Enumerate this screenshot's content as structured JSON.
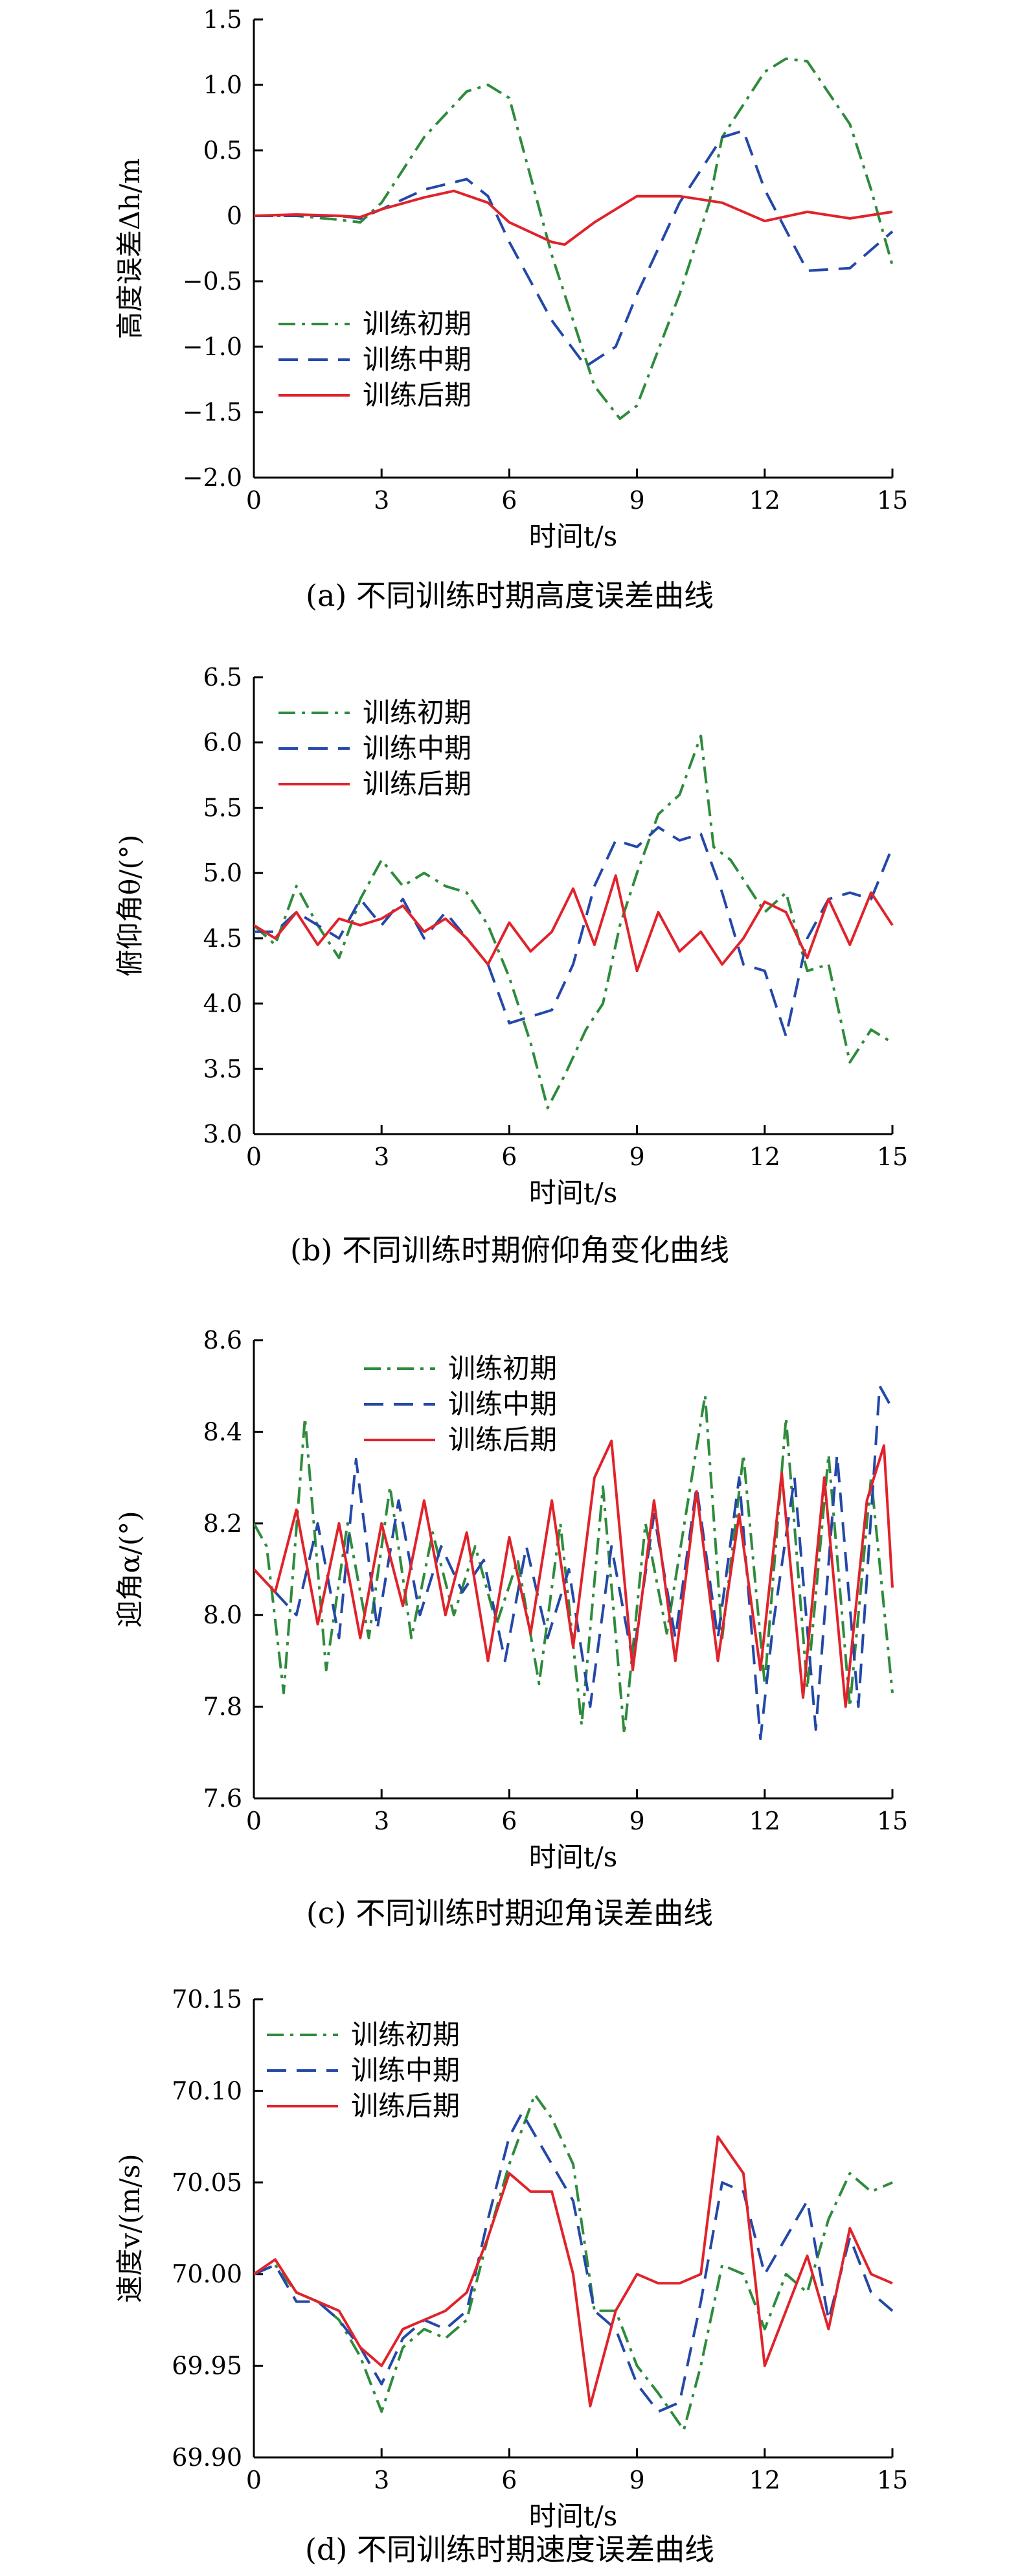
{
  "colors": {
    "early": "#2e8b3c",
    "middle": "#2448a8",
    "late": "#e0232b",
    "axis": "#000000"
  },
  "legend_labels": {
    "early": "训练初期",
    "middle": "训练中期",
    "late": "训练后期"
  },
  "chart_data": [
    {
      "type": "line",
      "caption": "(a) 不同训练时期高度误差曲线",
      "xlabel": "时间t/s",
      "ylabel": "高度误差Δh/m",
      "xlim": [
        0,
        15
      ],
      "ylim": [
        -2.0,
        1.5
      ],
      "xticks": [
        "0",
        "3",
        "6",
        "9",
        "12",
        "15"
      ],
      "yticks": [
        "−2.0",
        "−1.5",
        "−1.0",
        "−0.5",
        "0",
        "0.5",
        "1.0",
        "1.5"
      ],
      "legend": "left",
      "series": [
        {
          "name": "训练初期",
          "style": "dashdot",
          "color": "#2e8b3c",
          "x": [
            0,
            1,
            2,
            2.5,
            3,
            4,
            5,
            5.5,
            6,
            7,
            8,
            8.6,
            9,
            10,
            10.7,
            11,
            12,
            12.5,
            13,
            14,
            14.5,
            15
          ],
          "y": [
            0,
            0,
            -0.03,
            -0.05,
            0.1,
            0.6,
            0.95,
            1.0,
            0.9,
            -0.3,
            -1.3,
            -1.55,
            -1.45,
            -0.6,
            0.1,
            0.6,
            1.1,
            1.2,
            1.18,
            0.7,
            0.2,
            -0.38
          ]
        },
        {
          "name": "训练中期",
          "style": "dashed",
          "color": "#2448a8",
          "x": [
            0,
            1,
            2,
            2.5,
            3,
            4,
            5,
            5.5,
            6,
            7,
            7.8,
            8.5,
            9,
            10,
            11,
            11.5,
            12,
            13,
            14,
            15
          ],
          "y": [
            0,
            0,
            0,
            -0.02,
            0.05,
            0.2,
            0.28,
            0.15,
            -0.2,
            -0.8,
            -1.15,
            -1.0,
            -0.6,
            0.1,
            0.6,
            0.65,
            0.2,
            -0.42,
            -0.4,
            -0.12
          ]
        },
        {
          "name": "训练后期",
          "style": "solid",
          "color": "#e0232b",
          "x": [
            0,
            1,
            2,
            2.5,
            3,
            4,
            4.7,
            5.5,
            6,
            7,
            7.3,
            8,
            9,
            10,
            11,
            12,
            13,
            14,
            15
          ],
          "y": [
            0,
            0.01,
            0.0,
            -0.01,
            0.05,
            0.14,
            0.19,
            0.1,
            -0.05,
            -0.2,
            -0.22,
            -0.05,
            0.15,
            0.15,
            0.1,
            -0.04,
            0.03,
            -0.02,
            0.03
          ]
        }
      ]
    },
    {
      "type": "line",
      "caption": "(b) 不同训练时期俯仰角变化曲线",
      "xlabel": "时间t/s",
      "ylabel": "俯仰角θ/(°)",
      "xlim": [
        0,
        15
      ],
      "ylim": [
        3.0,
        6.5
      ],
      "xticks": [
        "0",
        "3",
        "6",
        "9",
        "12",
        "15"
      ],
      "yticks": [
        "3.0",
        "3.5",
        "4.0",
        "4.5",
        "5.0",
        "5.5",
        "6.0",
        "6.5"
      ],
      "legend": "top-left",
      "series": [
        {
          "name": "训练初期",
          "style": "dashdot",
          "color": "#2e8b3c",
          "x": [
            0,
            0.5,
            1,
            1.5,
            2,
            2.5,
            3,
            3.5,
            4,
            4.5,
            5,
            5.5,
            6,
            6.5,
            6.9,
            7.3,
            7.8,
            8.2,
            8.6,
            9,
            9.5,
            10,
            10.5,
            10.8,
            11.2,
            12,
            12.5,
            13,
            13.5,
            14,
            14.5,
            15
          ],
          "y": [
            4.6,
            4.45,
            4.9,
            4.6,
            4.35,
            4.8,
            5.1,
            4.9,
            5.0,
            4.9,
            4.85,
            4.6,
            4.2,
            3.7,
            3.2,
            3.45,
            3.8,
            4.0,
            4.6,
            5.0,
            5.45,
            5.6,
            6.05,
            5.2,
            5.1,
            4.7,
            4.85,
            4.25,
            4.3,
            3.55,
            3.8,
            3.7
          ]
        },
        {
          "name": "训练中期",
          "style": "dashed",
          "color": "#2448a8",
          "x": [
            0,
            0.5,
            1,
            1.5,
            2,
            2.5,
            3,
            3.5,
            4,
            4.5,
            5,
            5.5,
            6,
            7,
            7.5,
            8,
            8.5,
            9,
            9.5,
            10,
            10.5,
            11,
            11.5,
            12,
            12.5,
            13,
            13.5,
            14,
            14.5,
            15
          ],
          "y": [
            4.55,
            4.55,
            4.7,
            4.6,
            4.5,
            4.8,
            4.6,
            4.8,
            4.5,
            4.7,
            4.5,
            4.3,
            3.85,
            3.95,
            4.3,
            4.9,
            5.25,
            5.2,
            5.35,
            5.25,
            5.3,
            4.85,
            4.3,
            4.25,
            3.75,
            4.5,
            4.8,
            4.85,
            4.8,
            5.2
          ]
        },
        {
          "name": "训练后期",
          "style": "solid",
          "color": "#e0232b",
          "x": [
            0,
            0.5,
            1,
            1.5,
            2,
            2.5,
            3,
            3.5,
            4,
            4.5,
            5,
            5.5,
            6,
            6.5,
            7,
            7.5,
            8,
            8.5,
            9,
            9.5,
            10,
            10.5,
            11,
            11.5,
            12,
            12.5,
            13,
            13.5,
            14,
            14.5,
            15
          ],
          "y": [
            4.6,
            4.5,
            4.7,
            4.45,
            4.65,
            4.6,
            4.65,
            4.75,
            4.55,
            4.65,
            4.5,
            4.3,
            4.62,
            4.4,
            4.55,
            4.88,
            4.45,
            4.98,
            4.25,
            4.7,
            4.4,
            4.55,
            4.3,
            4.5,
            4.78,
            4.7,
            4.35,
            4.8,
            4.45,
            4.85,
            4.6
          ]
        }
      ]
    },
    {
      "type": "line",
      "caption": "(c) 不同训练时期迎角误差曲线",
      "xlabel": "时间t/s",
      "ylabel": "迎角α/(°)",
      "xlim": [
        0,
        15
      ],
      "ylim": [
        7.6,
        8.6
      ],
      "xticks": [
        "0",
        "3",
        "6",
        "9",
        "12",
        "15"
      ],
      "yticks": [
        "7.6",
        "7.8",
        "8.0",
        "8.2",
        "8.4",
        "8.6"
      ],
      "legend": "top-center",
      "series": [
        {
          "name": "训练初期",
          "style": "dashdot",
          "color": "#2e8b3c",
          "x": [
            0,
            0.3,
            0.7,
            1.2,
            1.7,
            2.2,
            2.7,
            3.2,
            3.7,
            4.2,
            4.7,
            5.2,
            5.7,
            6.2,
            6.7,
            7.2,
            7.7,
            8.2,
            8.7,
            9.2,
            9.7,
            10.2,
            10.6,
            11.0,
            11.5,
            12.0,
            12.5,
            13.0,
            13.5,
            14.0,
            14.5,
            15
          ],
          "y": [
            8.2,
            8.15,
            7.83,
            8.43,
            7.88,
            8.2,
            7.95,
            8.28,
            7.95,
            8.18,
            8.0,
            8.15,
            7.98,
            8.12,
            7.85,
            8.2,
            7.76,
            8.28,
            7.74,
            8.2,
            7.96,
            8.25,
            8.48,
            7.95,
            8.35,
            7.85,
            8.43,
            7.84,
            8.35,
            7.8,
            8.3,
            7.83
          ]
        },
        {
          "name": "训练中期",
          "style": "dashed",
          "color": "#2448a8",
          "x": [
            0,
            0.5,
            1,
            1.5,
            2,
            2.4,
            2.9,
            3.4,
            3.9,
            4.4,
            4.9,
            5.4,
            5.9,
            6.4,
            6.9,
            7.4,
            7.9,
            8.4,
            8.9,
            9.4,
            9.9,
            10.4,
            10.9,
            11.4,
            11.9,
            12.2,
            12.7,
            13.2,
            13.7,
            14.2,
            14.7,
            15
          ],
          "y": [
            8.1,
            8.05,
            8.0,
            8.2,
            7.95,
            8.34,
            7.97,
            8.25,
            8.0,
            8.15,
            8.05,
            8.12,
            7.9,
            8.15,
            7.95,
            8.1,
            7.8,
            8.15,
            7.9,
            8.22,
            7.95,
            8.28,
            7.95,
            8.3,
            7.73,
            7.98,
            8.3,
            7.75,
            8.35,
            7.8,
            8.5,
            8.45
          ]
        },
        {
          "name": "训练后期",
          "style": "solid",
          "color": "#e0232b",
          "x": [
            0,
            0.5,
            1,
            1.5,
            2,
            2.5,
            3,
            3.5,
            4,
            4.5,
            5,
            5.5,
            6,
            6.5,
            7,
            7.5,
            8,
            8.4,
            8.9,
            9.4,
            9.9,
            10.4,
            10.9,
            11.4,
            11.9,
            12.4,
            12.9,
            13.4,
            13.9,
            14.4,
            14.8,
            15
          ],
          "y": [
            8.1,
            8.05,
            8.23,
            7.98,
            8.2,
            7.95,
            8.2,
            8.02,
            8.25,
            8.0,
            8.18,
            7.9,
            8.17,
            7.96,
            8.25,
            7.93,
            8.3,
            8.38,
            7.88,
            8.25,
            7.9,
            8.27,
            7.9,
            8.22,
            7.88,
            8.31,
            7.82,
            8.3,
            7.8,
            8.25,
            8.37,
            8.06
          ]
        }
      ]
    },
    {
      "type": "line",
      "caption": "(d) 不同训练时期速度误差曲线",
      "xlabel": "时间t/s",
      "ylabel": "速度v/(m/s)",
      "xlim": [
        0,
        15
      ],
      "ylim": [
        69.9,
        70.15
      ],
      "xticks": [
        "0",
        "3",
        "6",
        "9",
        "12",
        "15"
      ],
      "yticks": [
        "69.90",
        "69.95",
        "70.00",
        "70.05",
        "70.10",
        "70.15"
      ],
      "legend": "top-left",
      "series": [
        {
          "name": "训练初期",
          "style": "dashdot",
          "color": "#2e8b3c",
          "x": [
            0,
            0.5,
            1,
            1.5,
            2,
            2.5,
            3,
            3.5,
            4,
            4.5,
            5,
            5.5,
            6,
            6.6,
            7,
            7.5,
            8,
            8.5,
            9,
            9.5,
            10.1,
            10.5,
            11,
            11.5,
            12,
            12.5,
            13,
            13.5,
            14,
            14.5,
            15
          ],
          "y": [
            70.0,
            70.005,
            69.99,
            69.985,
            69.975,
            69.955,
            69.925,
            69.96,
            69.97,
            69.965,
            69.975,
            70.02,
            70.06,
            70.098,
            70.085,
            70.06,
            69.98,
            69.98,
            69.95,
            69.935,
            69.915,
            69.95,
            70.005,
            70.0,
            69.97,
            70.0,
            69.99,
            70.03,
            70.055,
            70.045,
            70.05
          ]
        },
        {
          "name": "训练中期",
          "style": "dashed",
          "color": "#2448a8",
          "x": [
            0,
            0.5,
            1,
            1.5,
            2,
            2.5,
            3,
            3.5,
            4,
            4.5,
            5,
            5.5,
            6,
            6.3,
            7,
            7.5,
            8,
            8.5,
            9,
            9.5,
            10,
            10.5,
            11,
            11.5,
            12,
            12.5,
            13,
            13.5,
            14,
            14.5,
            15
          ],
          "y": [
            70.0,
            70.005,
            69.985,
            69.985,
            69.975,
            69.96,
            69.94,
            69.965,
            69.975,
            69.97,
            69.98,
            70.03,
            70.075,
            70.088,
            70.06,
            70.04,
            69.98,
            69.97,
            69.94,
            69.925,
            69.93,
            69.985,
            70.05,
            70.045,
            70.0,
            70.02,
            70.04,
            69.975,
            70.02,
            69.99,
            69.98
          ]
        },
        {
          "name": "训练后期",
          "style": "solid",
          "color": "#e0232b",
          "x": [
            0,
            0.5,
            1,
            1.5,
            2,
            2.5,
            3,
            3.5,
            4,
            4.5,
            5,
            5.5,
            6,
            6.5,
            7,
            7.5,
            7.9,
            8.5,
            9,
            9.5,
            10,
            10.5,
            10.9,
            11.5,
            12,
            12.5,
            13,
            13.5,
            14,
            14.5,
            15
          ],
          "y": [
            70.0,
            70.008,
            69.99,
            69.985,
            69.98,
            69.96,
            69.95,
            69.97,
            69.975,
            69.98,
            69.99,
            70.02,
            70.055,
            70.045,
            70.045,
            70.0,
            69.928,
            69.98,
            70.0,
            69.995,
            69.995,
            70.0,
            70.075,
            70.055,
            69.95,
            69.98,
            70.01,
            69.97,
            70.025,
            70.0,
            69.995
          ]
        }
      ]
    }
  ]
}
